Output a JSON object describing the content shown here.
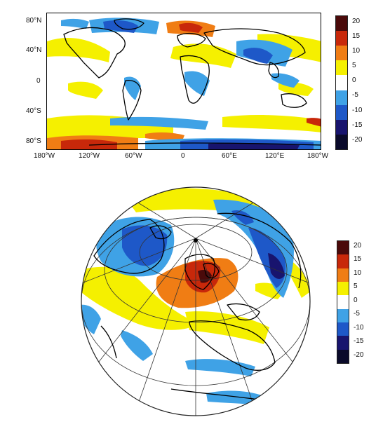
{
  "top_map": {
    "lat_labels": [
      "80°N",
      "40°N",
      "0",
      "40°S",
      "80°S"
    ],
    "lon_labels": [
      "180°W",
      "120°W",
      "60°W",
      "0",
      "60°E",
      "120°E",
      "180°W"
    ]
  },
  "colorbar": {
    "ticks": [
      "20",
      "15",
      "10",
      "5",
      "0",
      "-5",
      "-10",
      "-15",
      "-20"
    ],
    "colors": [
      "#4a0a0a",
      "#c8280a",
      "#f07d14",
      "#f5f000",
      "#ffffff",
      "#3fa2e6",
      "#1e58c8",
      "#18146e",
      "#0a0a2a"
    ]
  },
  "colorbar2": {
    "ticks": [
      "20",
      "15",
      "10",
      "5",
      "0",
      "-5",
      "-10",
      "-15",
      "-20"
    ],
    "colors": [
      "#4a0a0a",
      "#c8280a",
      "#f07d14",
      "#f5f000",
      "#ffffff",
      "#3fa2e6",
      "#1e58c8",
      "#18146e",
      "#0a0a2a"
    ]
  }
}
